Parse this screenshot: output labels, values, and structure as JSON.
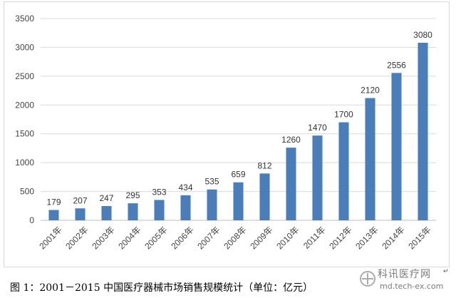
{
  "chart_data": {
    "type": "bar",
    "categories": [
      "2001年",
      "2002年",
      "2003年",
      "2004年",
      "2005年",
      "2006年",
      "2007年",
      "2008年",
      "2009年",
      "2010年",
      "2011年",
      "2012年",
      "2013年",
      "2014年",
      "2015年"
    ],
    "values": [
      179,
      207,
      247,
      295,
      353,
      434,
      535,
      659,
      812,
      1260,
      1470,
      1700,
      2120,
      2556,
      3080
    ],
    "value_labels": [
      "179",
      "207",
      "247",
      "295",
      "353",
      "434",
      "535",
      "659",
      "812",
      "1260",
      "1470",
      "1700",
      "2120",
      "2556",
      "3080"
    ],
    "y_ticks": [
      "0",
      "500",
      "1000",
      "1500",
      "2000",
      "2500",
      "3000",
      "3500"
    ],
    "ylim": [
      0,
      3500
    ],
    "grid": true,
    "legend": "none",
    "bar_color": "#4a7ebb"
  },
  "caption": "图 1：2001－2015 中国医疗器械市场销售规模统计（单位：亿元）",
  "watermark": {
    "brand": "科讯医疗网",
    "url": "md.tech-ex.com"
  },
  "paragraph_mark": "↵"
}
